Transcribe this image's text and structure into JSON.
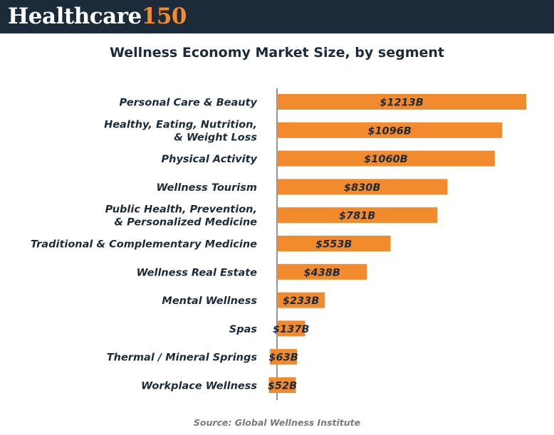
{
  "header": {
    "logo_word": "Healthcare",
    "logo_number": "150"
  },
  "chart_data": {
    "type": "bar",
    "orientation": "horizontal",
    "title": "Wellness Economy Market Size, by segment",
    "categories": [
      [
        "Personal Care & Beauty"
      ],
      [
        "Healthy, Eating, Nutrition,",
        "& Weight Loss"
      ],
      [
        "Physical Activity"
      ],
      [
        "Wellness Tourism"
      ],
      [
        "Public Health, Prevention,",
        "& Personalized Medicine"
      ],
      [
        "Traditional & Complementary Medicine"
      ],
      [
        "Wellness Real Estate"
      ],
      [
        "Mental Wellness"
      ],
      [
        "Spas"
      ],
      [
        "Thermal / Mineral Springs"
      ],
      [
        "Workplace Wellness"
      ]
    ],
    "values": [
      1213,
      1096,
      1060,
      830,
      781,
      553,
      438,
      233,
      137,
      63,
      52
    ],
    "value_labels": [
      "$1213B",
      "$1096B",
      "$1060B",
      "$830B",
      "$781B",
      "$553B",
      "$438B",
      "$233B",
      "$137B",
      "$63B",
      "$52B"
    ],
    "bar_color": "#f28a2e",
    "xlim": [
      0,
      1213
    ],
    "grid": false,
    "legend": "none"
  },
  "source": "Source: Global Wellness Institute"
}
